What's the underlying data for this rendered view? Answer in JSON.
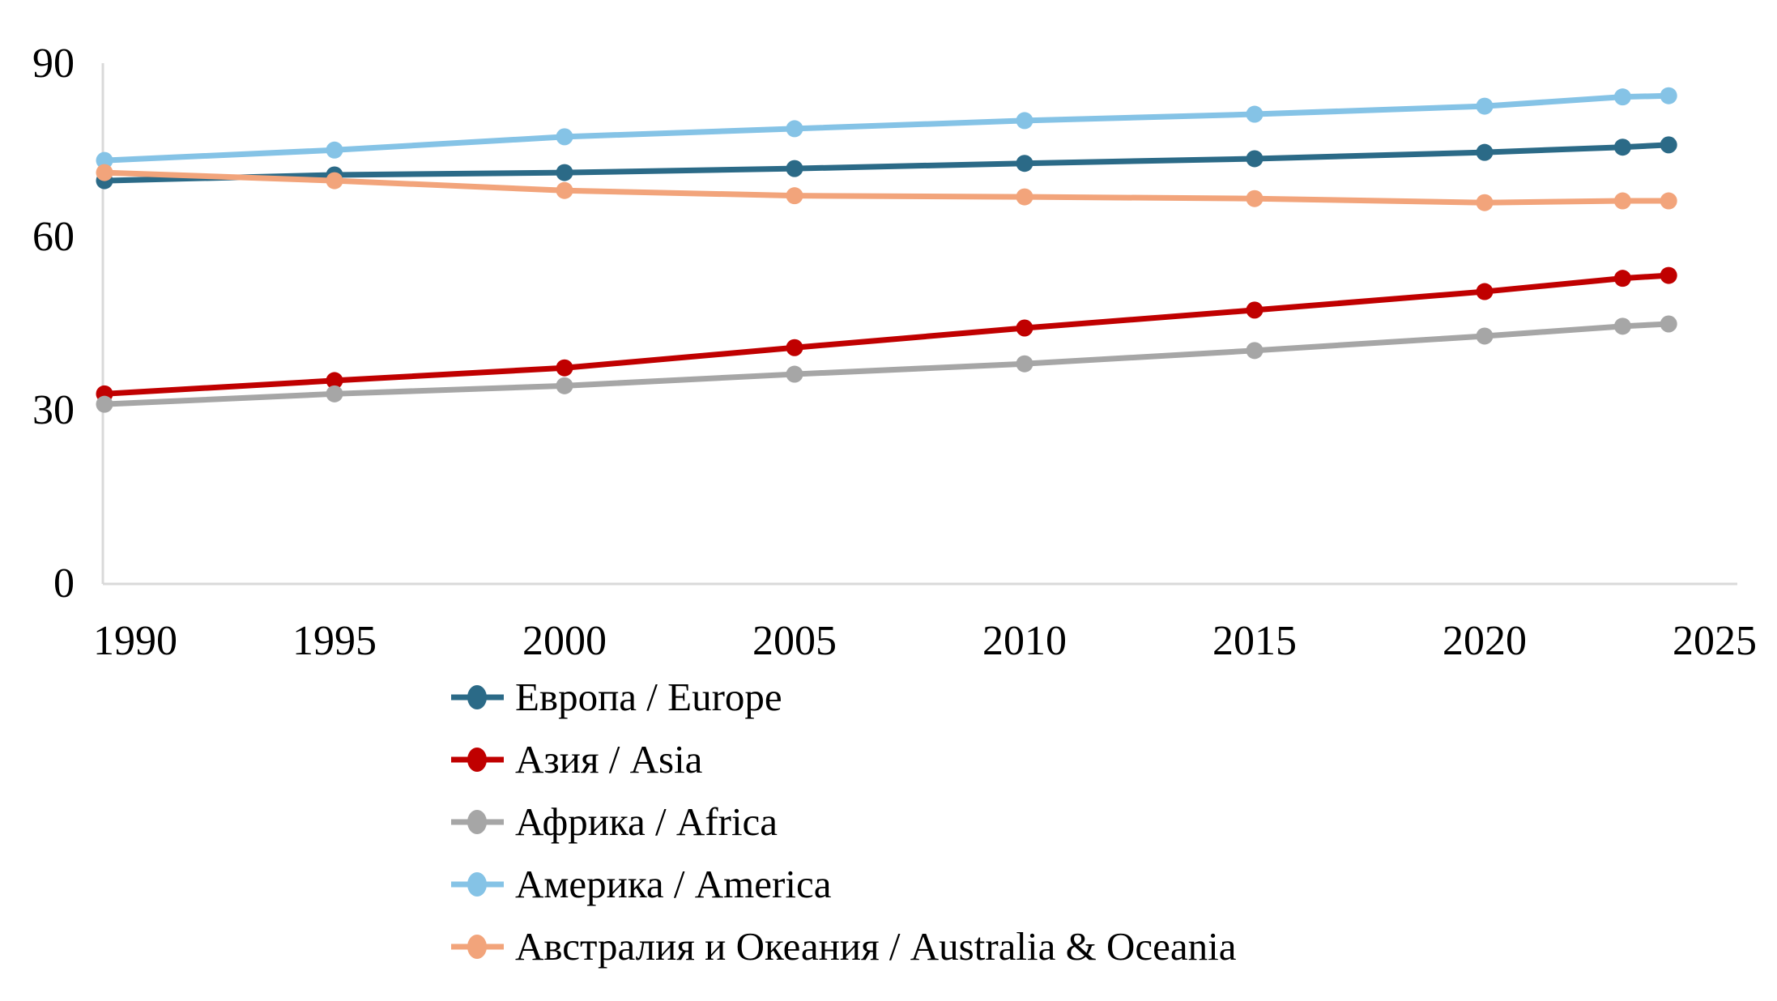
{
  "chart_data": {
    "type": "line",
    "x": [
      1990,
      1995,
      2000,
      2005,
      2010,
      2015,
      2020,
      2023,
      2024
    ],
    "series": [
      {
        "name": "Европа / Europe",
        "color": "#2B6A87",
        "values": [
          69.8,
          70.8,
          71.2,
          71.9,
          72.8,
          73.6,
          74.7,
          75.6,
          76.0
        ]
      },
      {
        "name": "Азия / Asia",
        "color": "#C00000",
        "values": [
          32.9,
          35.2,
          37.4,
          40.9,
          44.3,
          47.4,
          50.6,
          52.9,
          53.4
        ]
      },
      {
        "name": "Африка / Africa",
        "color": "#A6A6A6",
        "values": [
          31.1,
          32.9,
          34.3,
          36.3,
          38.1,
          40.4,
          42.9,
          44.6,
          45.0
        ]
      },
      {
        "name": "Америка / America",
        "color": "#85C3E6",
        "values": [
          73.3,
          75.1,
          77.4,
          78.8,
          80.2,
          81.3,
          82.7,
          84.3,
          84.5
        ]
      },
      {
        "name": "Австралия и Океания / Australia & Oceania",
        "color": "#F2A47B",
        "values": [
          71.2,
          69.8,
          68.1,
          67.2,
          67.0,
          66.7,
          66.0,
          66.3,
          66.3
        ]
      }
    ],
    "x_ticks": [
      "1990",
      "1995",
      "2000",
      "2005",
      "2010",
      "2015",
      "2020",
      "2025"
    ],
    "y_ticks": [
      "0",
      "30",
      "60",
      "90"
    ],
    "xlim": [
      1990,
      2025.5
    ],
    "ylim": [
      0,
      90
    ],
    "title": "",
    "xlabel": "",
    "ylabel": "",
    "grid": false,
    "legend_position": "bottom-left",
    "axis_color": "#D9D9D9",
    "text_color": "#000000",
    "background_color": "#FFFFFF"
  }
}
